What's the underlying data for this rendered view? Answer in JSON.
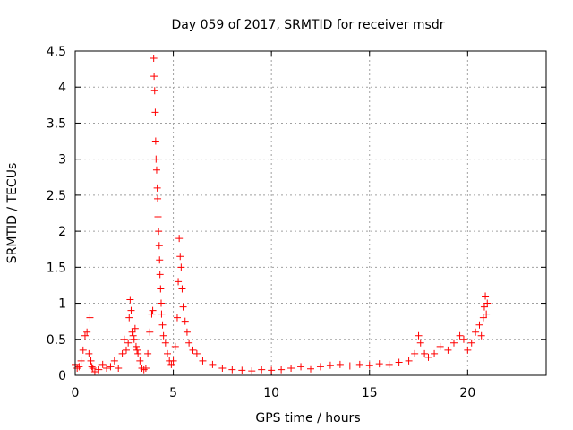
{
  "chart_data": {
    "type": "scatter",
    "title": "Day 059 of 2017, SRMTID for receiver msdr",
    "xlabel": "GPS time / hours",
    "ylabel": "SRMTID / TECUs",
    "xlim": [
      0,
      24
    ],
    "ylim": [
      0,
      4.5
    ],
    "xticks": [
      0,
      5,
      10,
      15,
      20
    ],
    "xtick_labels": [
      "0",
      "5",
      "10",
      "15",
      "20"
    ],
    "yticks": [
      0,
      0.5,
      1,
      1.5,
      2,
      2.5,
      3,
      3.5,
      4,
      4.5
    ],
    "ytick_labels": [
      "0",
      "0.5",
      "1",
      "1.5",
      "2",
      "2.5",
      "3",
      "3.5",
      "4",
      "4.5"
    ],
    "grid": true,
    "marker": "+",
    "color": "#ff0000",
    "series": [
      {
        "x": [
          0.0,
          0.1,
          0.2,
          0.3,
          0.4,
          0.5,
          0.6,
          0.7,
          0.75,
          0.8,
          0.85,
          0.9,
          1.0,
          1.2,
          1.4,
          1.6,
          1.8,
          2.0,
          2.2,
          2.4,
          2.5,
          2.6,
          2.7,
          2.75,
          2.8,
          2.85,
          2.9,
          2.95,
          3.0,
          3.05,
          3.1,
          3.15,
          3.2,
          3.3,
          3.4,
          3.5,
          3.6,
          3.7,
          3.8,
          3.9,
          3.95,
          4.0,
          4.02,
          4.05,
          4.08,
          4.1,
          4.12,
          4.15,
          4.18,
          4.2,
          4.22,
          4.25,
          4.28,
          4.3,
          4.32,
          4.35,
          4.38,
          4.4,
          4.45,
          4.5,
          4.6,
          4.7,
          4.8,
          4.9,
          5.0,
          5.1,
          5.2,
          5.25,
          5.3,
          5.35,
          5.4,
          5.45,
          5.5,
          5.6,
          5.7,
          5.8,
          6.0,
          6.2,
          6.5,
          7.0,
          7.5,
          8.0,
          8.5,
          9.0,
          9.5,
          10.0,
          10.5,
          11.0,
          11.5,
          12.0,
          12.5,
          13.0,
          13.5,
          14.0,
          14.5,
          15.0,
          15.5,
          16.0,
          16.5,
          17.0,
          17.3,
          17.5,
          17.6,
          17.8,
          18.0,
          18.3,
          18.6,
          19.0,
          19.3,
          19.6,
          19.8,
          20.0,
          20.2,
          20.4,
          20.6,
          20.7,
          20.8,
          20.85,
          20.9,
          20.95,
          21.0
        ],
        "y": [
          0.15,
          0.1,
          0.12,
          0.2,
          0.35,
          0.55,
          0.6,
          0.3,
          0.8,
          0.2,
          0.12,
          0.1,
          0.05,
          0.08,
          0.15,
          0.1,
          0.12,
          0.2,
          0.1,
          0.3,
          0.5,
          0.35,
          0.45,
          0.8,
          1.05,
          0.9,
          0.6,
          0.55,
          0.5,
          0.65,
          0.4,
          0.35,
          0.3,
          0.2,
          0.1,
          0.08,
          0.1,
          0.3,
          0.6,
          0.85,
          0.9,
          4.4,
          4.15,
          3.95,
          3.65,
          3.25,
          3.0,
          2.85,
          2.6,
          2.45,
          2.2,
          2.0,
          1.8,
          1.6,
          1.4,
          1.2,
          1.0,
          0.85,
          0.7,
          0.55,
          0.45,
          0.3,
          0.2,
          0.15,
          0.2,
          0.4,
          0.8,
          1.3,
          1.9,
          1.65,
          1.5,
          1.2,
          0.95,
          0.75,
          0.6,
          0.45,
          0.35,
          0.3,
          0.2,
          0.15,
          0.1,
          0.08,
          0.07,
          0.06,
          0.08,
          0.07,
          0.08,
          0.1,
          0.12,
          0.09,
          0.12,
          0.14,
          0.15,
          0.13,
          0.15,
          0.14,
          0.16,
          0.15,
          0.18,
          0.2,
          0.3,
          0.55,
          0.45,
          0.3,
          0.25,
          0.3,
          0.4,
          0.35,
          0.45,
          0.55,
          0.5,
          0.35,
          0.45,
          0.6,
          0.7,
          0.55,
          0.8,
          0.95,
          1.1,
          0.85,
          1.0
        ]
      }
    ]
  }
}
